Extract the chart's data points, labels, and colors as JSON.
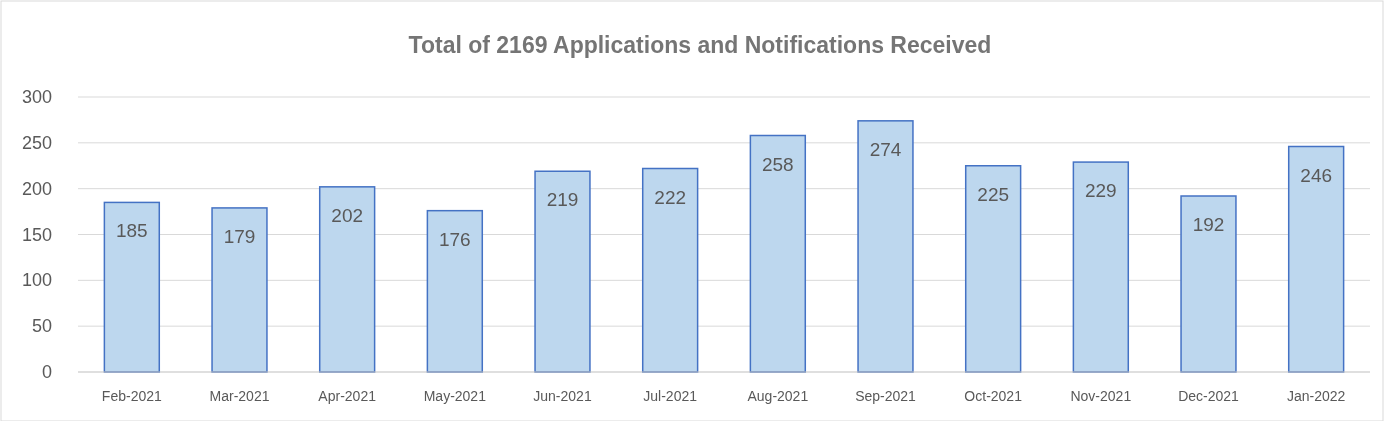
{
  "chart_data": {
    "type": "bar",
    "title": "Total of 2169 Applications and Notifications Received",
    "categories": [
      "Feb-2021",
      "Mar-2021",
      "Apr-2021",
      "May-2021",
      "Jun-2021",
      "Jul-2021",
      "Aug-2021",
      "Sep-2021",
      "Oct-2021",
      "Nov-2021",
      "Dec-2021",
      "Jan-2022"
    ],
    "values": [
      185,
      179,
      202,
      176,
      219,
      222,
      258,
      274,
      225,
      229,
      192,
      246
    ],
    "color": "#bdd7ee",
    "ylim": [
      0,
      300
    ],
    "yticks": [
      0,
      50,
      100,
      150,
      200,
      250,
      300
    ],
    "grid": "y",
    "data_labels": true
  }
}
